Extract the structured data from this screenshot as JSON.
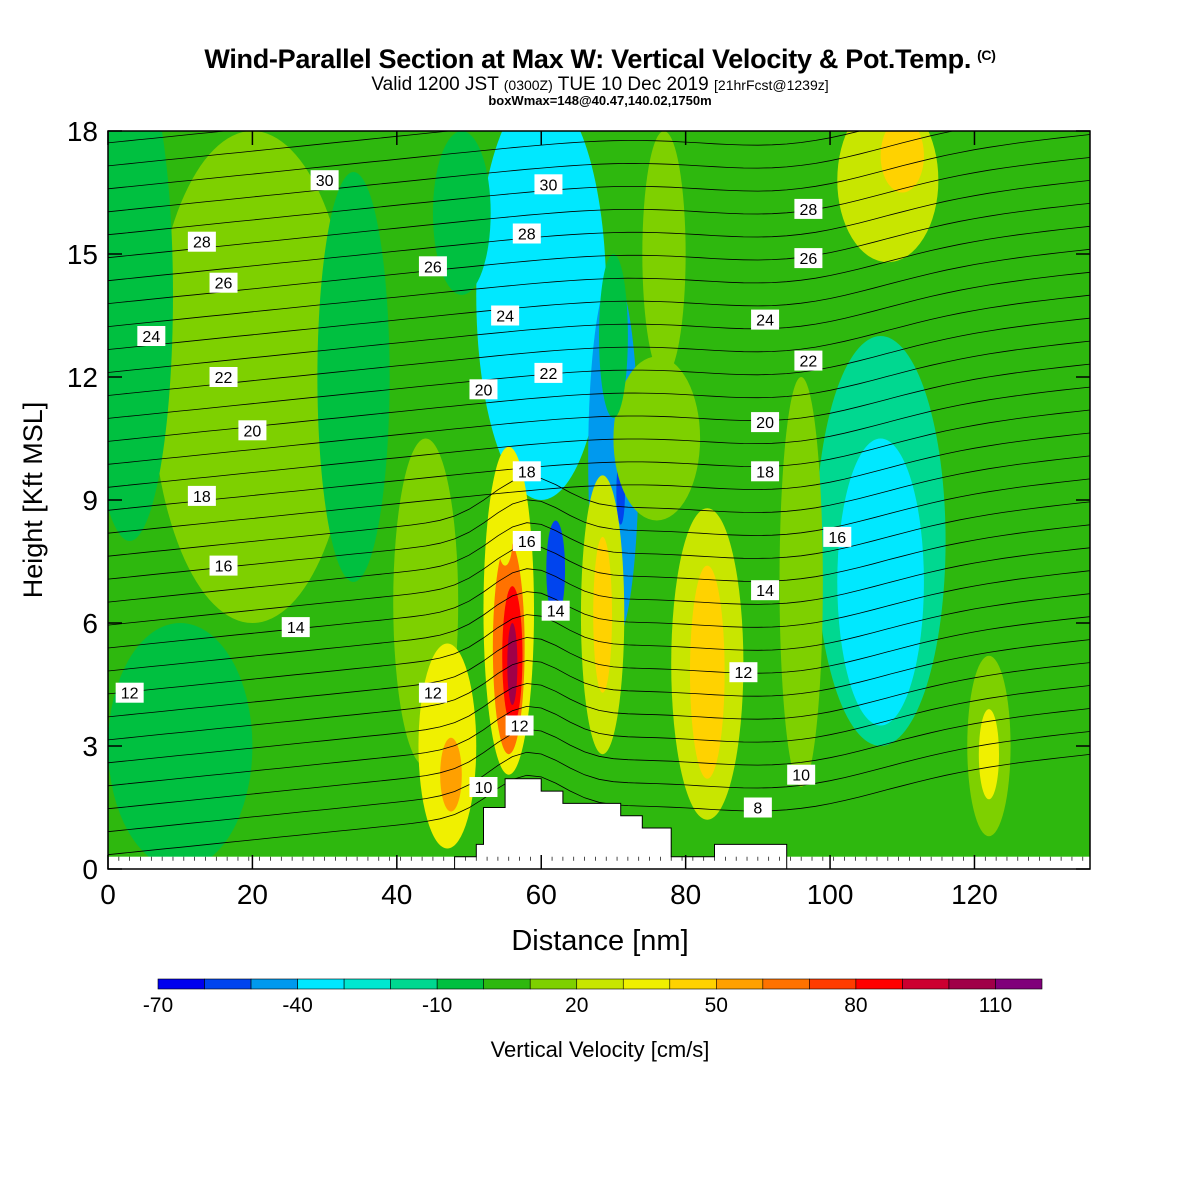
{
  "title": "Wind-Parallel Section at Max W: Vertical Velocity & Pot.Temp.",
  "copyright": "(C)",
  "subtitle": {
    "valid_prefix": "Valid 1200 JST",
    "utc": "(0300Z)",
    "date": "TUE 10 Dec 2019",
    "forecast": "[21hrFcst@1239z]"
  },
  "box_info": "boxWmax=148@40.47,140.02,1750m",
  "chart_data": {
    "type": "heatmap",
    "xlabel": "Distance [nm]",
    "ylabel": "Height [Kft MSL]",
    "xlim": [
      0,
      136
    ],
    "ylim": [
      0,
      18
    ],
    "x_ticks": [
      0,
      20,
      40,
      60,
      80,
      100,
      120
    ],
    "y_ticks": [
      0,
      3,
      6,
      9,
      12,
      15,
      18
    ],
    "colorbar": {
      "label": "Vertical Velocity [cm/s]",
      "tick_labels": [
        "-70",
        "-40",
        "-10",
        "20",
        "50",
        "80",
        "110"
      ],
      "levels": [
        -70,
        -60,
        -50,
        -40,
        -30,
        -20,
        -10,
        0,
        10,
        20,
        30,
        40,
        50,
        60,
        70,
        80,
        90,
        100,
        110,
        120
      ],
      "colors": [
        "#0000ee",
        "#0044ee",
        "#0099ee",
        "#00e8ff",
        "#00e8d0",
        "#00d890",
        "#00c040",
        "#2eb80e",
        "#7ed000",
        "#c8e600",
        "#f0f000",
        "#ffd200",
        "#ffa000",
        "#ff7200",
        "#ff3c00",
        "#ff0000",
        "#cc0030",
        "#a00048",
        "#80007a"
      ]
    },
    "contour_field": "Potential temperature",
    "contour_labels": [
      {
        "x": 30,
        "y": 16.8,
        "v": "30"
      },
      {
        "x": 61,
        "y": 16.7,
        "v": "30"
      },
      {
        "x": 13,
        "y": 15.3,
        "v": "28"
      },
      {
        "x": 58,
        "y": 15.5,
        "v": "28"
      },
      {
        "x": 97,
        "y": 16.1,
        "v": "28"
      },
      {
        "x": 16,
        "y": 14.3,
        "v": "26"
      },
      {
        "x": 45,
        "y": 14.7,
        "v": "26"
      },
      {
        "x": 97,
        "y": 14.9,
        "v": "26"
      },
      {
        "x": 6,
        "y": 13.0,
        "v": "24"
      },
      {
        "x": 55,
        "y": 13.5,
        "v": "24"
      },
      {
        "x": 91,
        "y": 13.4,
        "v": "24"
      },
      {
        "x": 16,
        "y": 12.0,
        "v": "22"
      },
      {
        "x": 61,
        "y": 12.1,
        "v": "22"
      },
      {
        "x": 97,
        "y": 12.4,
        "v": "22"
      },
      {
        "x": 20,
        "y": 10.7,
        "v": "20"
      },
      {
        "x": 52,
        "y": 11.7,
        "v": "20"
      },
      {
        "x": 91,
        "y": 10.9,
        "v": "20"
      },
      {
        "x": 13,
        "y": 9.1,
        "v": "18"
      },
      {
        "x": 58,
        "y": 9.7,
        "v": "18"
      },
      {
        "x": 91,
        "y": 9.7,
        "v": "18"
      },
      {
        "x": 16,
        "y": 7.4,
        "v": "16"
      },
      {
        "x": 58,
        "y": 8.0,
        "v": "16"
      },
      {
        "x": 101,
        "y": 8.1,
        "v": "16"
      },
      {
        "x": 26,
        "y": 5.9,
        "v": "14"
      },
      {
        "x": 62,
        "y": 6.3,
        "v": "14"
      },
      {
        "x": 91,
        "y": 6.8,
        "v": "14"
      },
      {
        "x": 3,
        "y": 4.3,
        "v": "12"
      },
      {
        "x": 45,
        "y": 4.3,
        "v": "12"
      },
      {
        "x": 57,
        "y": 3.5,
        "v": "12"
      },
      {
        "x": 88,
        "y": 4.8,
        "v": "12"
      },
      {
        "x": 52,
        "y": 2.0,
        "v": "10"
      },
      {
        "x": 96,
        "y": 2.3,
        "v": "10"
      },
      {
        "x": 90,
        "y": 1.5,
        "v": "8"
      }
    ],
    "terrain": [
      [
        48,
        0.3
      ],
      [
        51,
        0.3
      ],
      [
        51,
        0.6
      ],
      [
        52,
        0.6
      ],
      [
        52,
        1.5
      ],
      [
        55,
        1.5
      ],
      [
        55,
        2.2
      ],
      [
        60,
        2.2
      ],
      [
        60,
        1.9
      ],
      [
        63,
        1.9
      ],
      [
        63,
        1.6
      ],
      [
        71,
        1.6
      ],
      [
        71,
        1.3
      ],
      [
        74,
        1.3
      ],
      [
        74,
        1.0
      ],
      [
        78,
        1.0
      ],
      [
        78,
        0.3
      ],
      [
        84,
        0.3
      ],
      [
        84,
        0.6
      ],
      [
        94,
        0.6
      ],
      [
        94,
        0.3
      ]
    ],
    "grid": false,
    "legend": "bottom"
  }
}
